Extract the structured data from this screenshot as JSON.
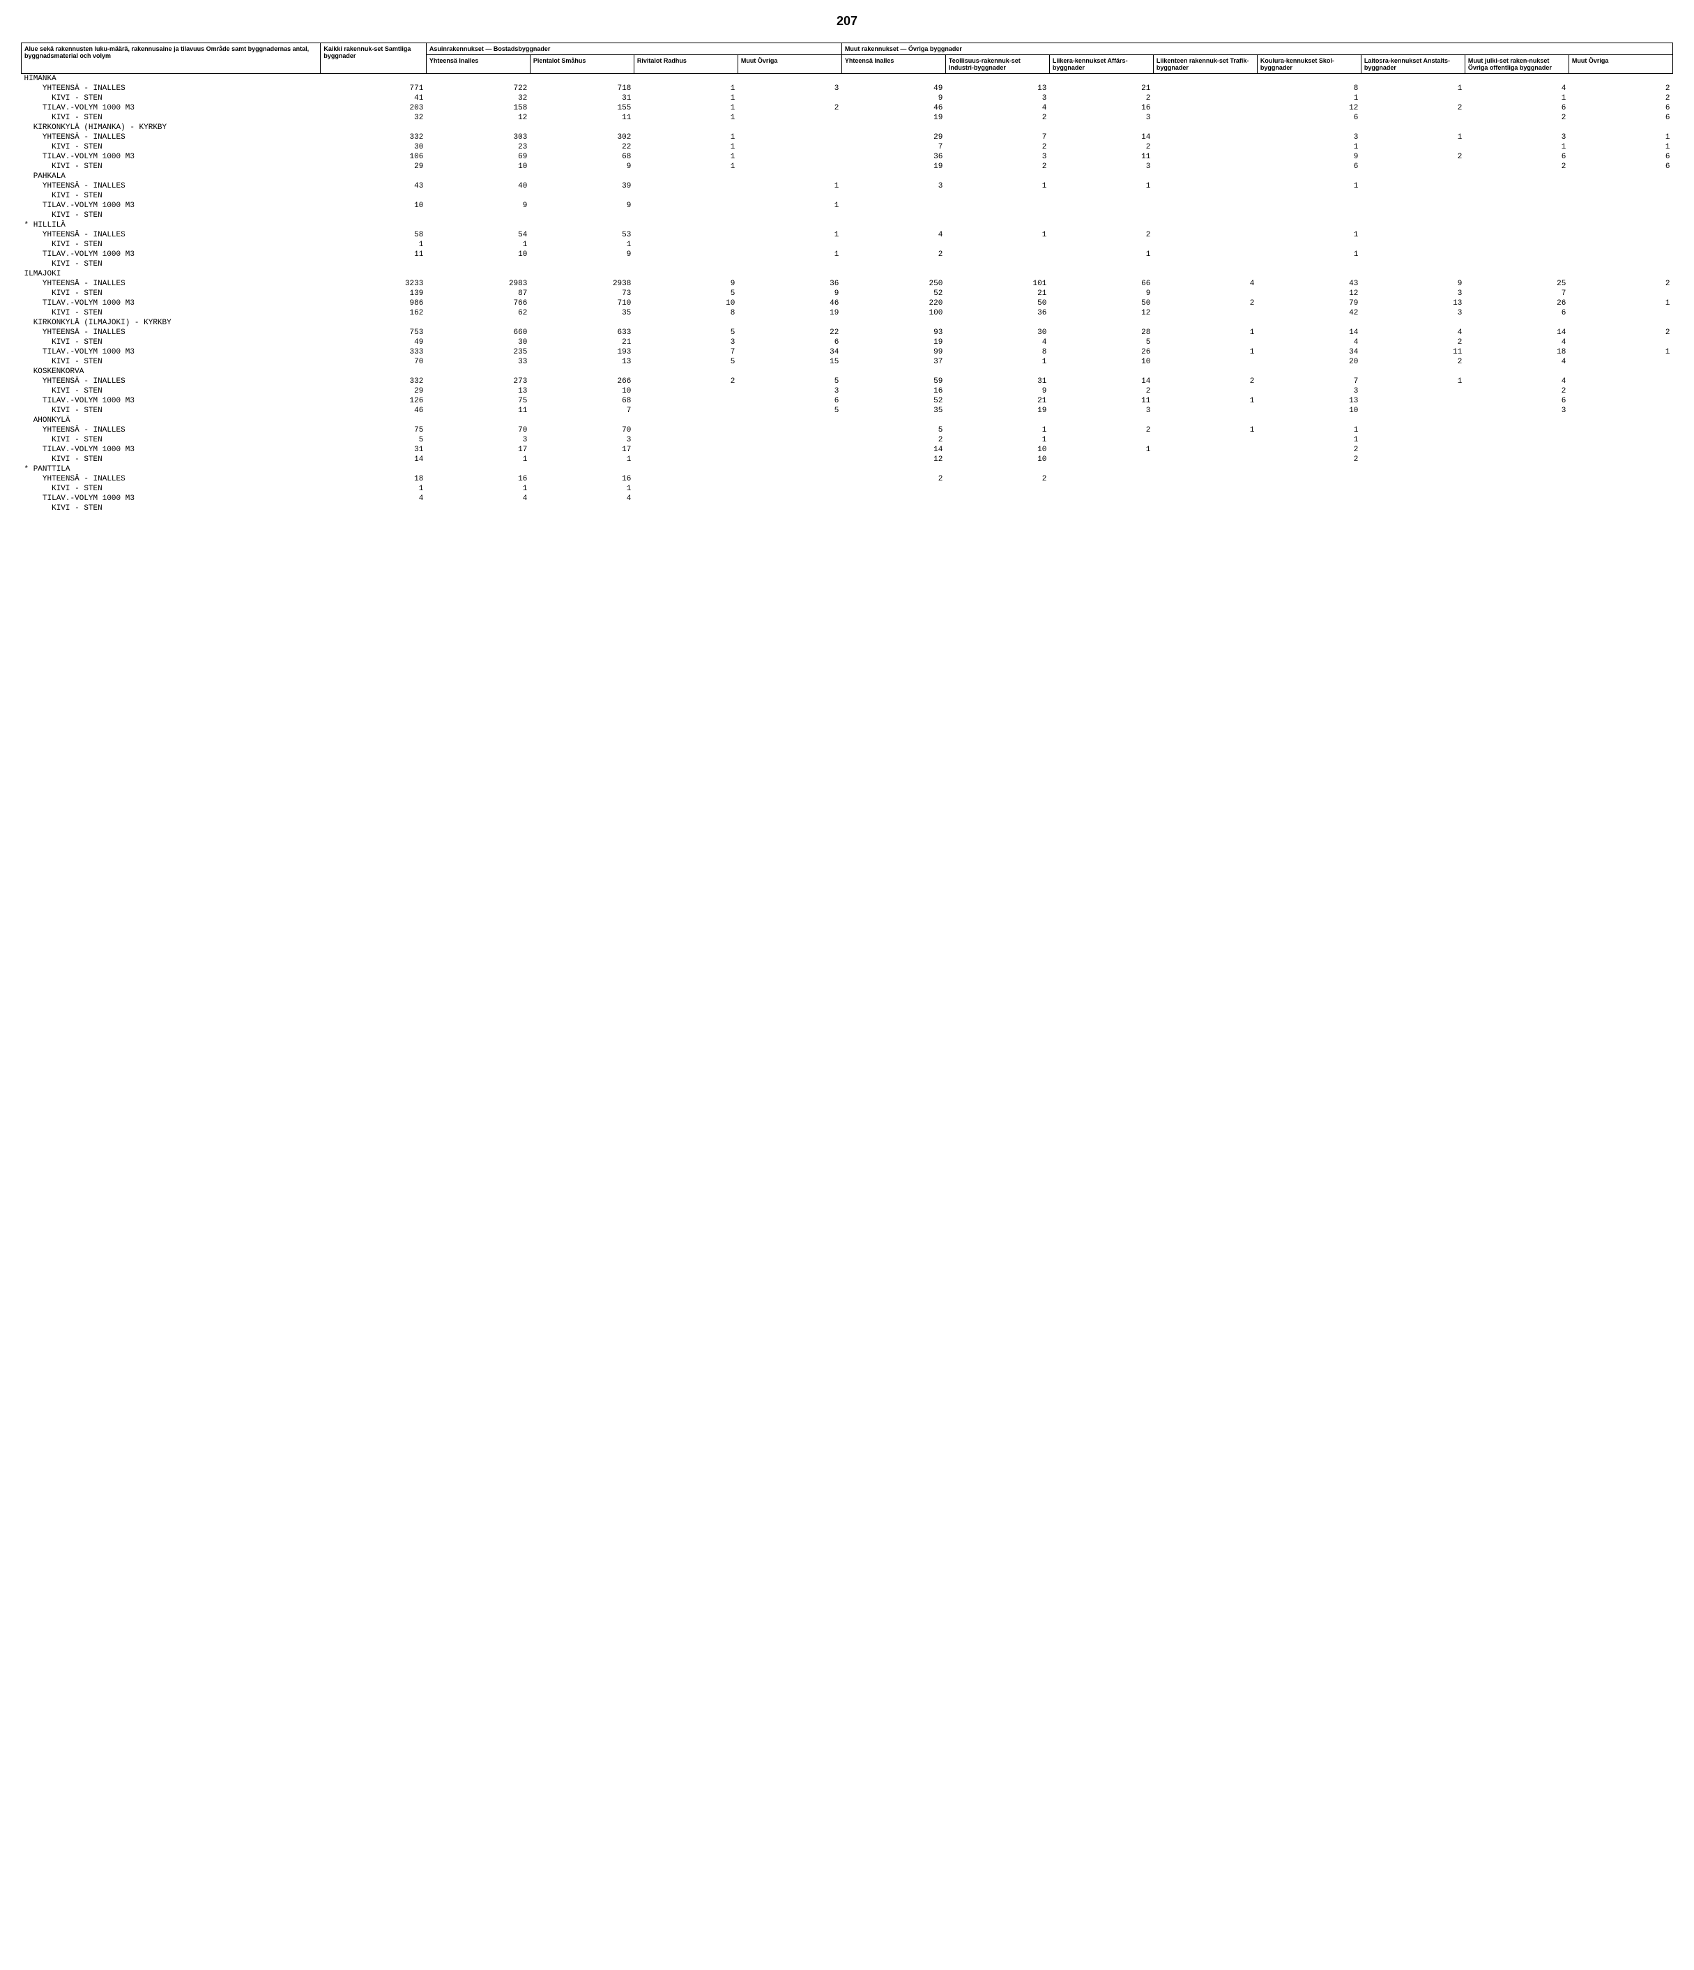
{
  "page_number": "207",
  "header": {
    "col0": "Alue sekä rakennusten luku-määrä, rakennusaine ja tilavuus\nOmråde samt byggnadernas antal, byggnadsmaterial och volym",
    "col1": "Kaikki rakennuk-set\nSamtliga byggnader",
    "grp1": "Asuinrakennukset — Bostadsbyggnader",
    "col2": "Yhteensä Inalles",
    "col3": "Pientalot Småhus",
    "col4": "Rivitalot Radhus",
    "col5": "Muut Övriga",
    "grp2": "Muut rakennukset — Övriga byggnader",
    "col6": "Yhteensä Inalles",
    "col7": "Teollisuus-rakennuk-set\nIndustri-byggnader",
    "col8": "Liikera-kennukset Affärs-byggnader",
    "col9": "Liikenteen rakennuk-set\nTrafik-byggnader",
    "col10": "Koulura-kennukset Skol-byggnader",
    "col11": "Laitosra-kennukset Anstalts-byggnader",
    "col12": "Muut julki-set raken-nukset\nÖvriga offentliga byggnader",
    "col13": "Muut Övriga"
  },
  "labels": {
    "yht": "YHTEENSÄ - INALLES",
    "kivi": "KIVI - STEN",
    "tilav": "TILAV.-VOLYM 1000 M3"
  },
  "sections": [
    {
      "name": "HIMANKA",
      "groups": [
        {
          "rows": [
            {
              "l": "yht",
              "c": [
                "771",
                "722",
                "718",
                "1",
                "3",
                "49",
                "13",
                "21",
                "",
                "8",
                "1",
                "4",
                "2"
              ]
            },
            {
              "l": "kivi",
              "c": [
                "41",
                "32",
                "31",
                "1",
                "",
                "9",
                "3",
                "2",
                "",
                "1",
                "",
                "1",
                "2"
              ]
            }
          ]
        },
        {
          "rows": [
            {
              "l": "tilav",
              "c": [
                "203",
                "158",
                "155",
                "1",
                "2",
                "46",
                "4",
                "16",
                "",
                "12",
                "2",
                "6",
                "6"
              ]
            },
            {
              "l": "kivi",
              "c": [
                "32",
                "12",
                "11",
                "1",
                "",
                "19",
                "2",
                "3",
                "",
                "6",
                "",
                "2",
                "6"
              ]
            }
          ]
        }
      ]
    },
    {
      "name": "KIRKONKYLÄ (HIMANKA) - KYRKBY",
      "indent": true,
      "groups": [
        {
          "rows": [
            {
              "l": "yht",
              "c": [
                "332",
                "303",
                "302",
                "1",
                "",
                "29",
                "7",
                "14",
                "",
                "3",
                "1",
                "3",
                "1"
              ]
            },
            {
              "l": "kivi",
              "c": [
                "30",
                "23",
                "22",
                "1",
                "",
                "7",
                "2",
                "2",
                "",
                "1",
                "",
                "1",
                "1"
              ]
            }
          ]
        },
        {
          "rows": [
            {
              "l": "tilav",
              "c": [
                "106",
                "69",
                "68",
                "1",
                "",
                "36",
                "3",
                "11",
                "",
                "9",
                "2",
                "6",
                "6"
              ]
            },
            {
              "l": "kivi",
              "c": [
                "29",
                "10",
                "9",
                "1",
                "",
                "19",
                "2",
                "3",
                "",
                "6",
                "",
                "2",
                "6"
              ]
            }
          ]
        }
      ]
    },
    {
      "name": "PAHKALA",
      "indent": true,
      "groups": [
        {
          "rows": [
            {
              "l": "yht",
              "c": [
                "43",
                "40",
                "39",
                "",
                "1",
                "3",
                "1",
                "1",
                "",
                "1",
                "",
                "",
                ""
              ]
            },
            {
              "l": "kivi",
              "c": [
                "",
                "",
                "",
                "",
                "",
                "",
                "",
                "",
                "",
                "",
                "",
                "",
                ""
              ]
            }
          ]
        },
        {
          "rows": [
            {
              "l": "tilav",
              "c": [
                "10",
                "9",
                "9",
                "",
                "1",
                "",
                "",
                "",
                "",
                "",
                "",
                "",
                ""
              ]
            },
            {
              "l": "kivi",
              "c": [
                "",
                "",
                "",
                "",
                "",
                "",
                "",
                "",
                "",
                "",
                "",
                "",
                ""
              ]
            }
          ]
        }
      ]
    },
    {
      "name": "* HILLILÄ",
      "groups": [
        {
          "rows": [
            {
              "l": "yht",
              "c": [
                "58",
                "54",
                "53",
                "",
                "1",
                "4",
                "1",
                "2",
                "",
                "1",
                "",
                "",
                ""
              ]
            },
            {
              "l": "kivi",
              "c": [
                "1",
                "1",
                "1",
                "",
                "",
                "",
                "",
                "",
                "",
                "",
                "",
                "",
                ""
              ]
            }
          ]
        },
        {
          "rows": [
            {
              "l": "tilav",
              "c": [
                "11",
                "10",
                "9",
                "",
                "1",
                "2",
                "",
                "1",
                "",
                "1",
                "",
                "",
                ""
              ]
            },
            {
              "l": "kivi",
              "c": [
                "",
                "",
                "",
                "",
                "",
                "",
                "",
                "",
                "",
                "",
                "",
                "",
                ""
              ]
            }
          ]
        }
      ]
    },
    {
      "name": "ILMAJOKI",
      "groups": [
        {
          "rows": [
            {
              "l": "yht",
              "c": [
                "3233",
                "2983",
                "2938",
                "9",
                "36",
                "250",
                "101",
                "66",
                "4",
                "43",
                "9",
                "25",
                "2"
              ]
            },
            {
              "l": "kivi",
              "c": [
                "139",
                "87",
                "73",
                "5",
                "9",
                "52",
                "21",
                "9",
                "",
                "12",
                "3",
                "7",
                ""
              ]
            }
          ]
        },
        {
          "rows": [
            {
              "l": "tilav",
              "c": [
                "986",
                "766",
                "710",
                "10",
                "46",
                "220",
                "50",
                "50",
                "2",
                "79",
                "13",
                "26",
                "1"
              ]
            },
            {
              "l": "kivi",
              "c": [
                "162",
                "62",
                "35",
                "8",
                "19",
                "100",
                "36",
                "12",
                "",
                "42",
                "3",
                "6",
                ""
              ]
            }
          ]
        }
      ]
    },
    {
      "name": "KIRKONKYLÄ (ILMAJOKI) - KYRKBY",
      "indent": true,
      "groups": [
        {
          "rows": [
            {
              "l": "yht",
              "c": [
                "753",
                "660",
                "633",
                "5",
                "22",
                "93",
                "30",
                "28",
                "1",
                "14",
                "4",
                "14",
                "2"
              ]
            },
            {
              "l": "kivi",
              "c": [
                "49",
                "30",
                "21",
                "3",
                "6",
                "19",
                "4",
                "5",
                "",
                "4",
                "2",
                "4",
                ""
              ]
            }
          ]
        },
        {
          "rows": [
            {
              "l": "tilav",
              "c": [
                "333",
                "235",
                "193",
                "7",
                "34",
                "99",
                "8",
                "26",
                "1",
                "34",
                "11",
                "18",
                "1"
              ]
            },
            {
              "l": "kivi",
              "c": [
                "70",
                "33",
                "13",
                "5",
                "15",
                "37",
                "1",
                "10",
                "",
                "20",
                "2",
                "4",
                ""
              ]
            }
          ]
        }
      ]
    },
    {
      "name": "KOSKENKORVA",
      "indent": true,
      "groups": [
        {
          "rows": [
            {
              "l": "yht",
              "c": [
                "332",
                "273",
                "266",
                "2",
                "5",
                "59",
                "31",
                "14",
                "2",
                "7",
                "1",
                "4",
                ""
              ]
            },
            {
              "l": "kivi",
              "c": [
                "29",
                "13",
                "10",
                "",
                "3",
                "16",
                "9",
                "2",
                "",
                "3",
                "",
                "2",
                ""
              ]
            }
          ]
        },
        {
          "rows": [
            {
              "l": "tilav",
              "c": [
                "126",
                "75",
                "68",
                "",
                "6",
                "52",
                "21",
                "11",
                "1",
                "13",
                "",
                "6",
                ""
              ]
            },
            {
              "l": "kivi",
              "c": [
                "46",
                "11",
                "7",
                "",
                "5",
                "35",
                "19",
                "3",
                "",
                "10",
                "",
                "3",
                ""
              ]
            }
          ]
        }
      ]
    },
    {
      "name": "AHONKYLÄ",
      "indent": true,
      "groups": [
        {
          "rows": [
            {
              "l": "yht",
              "c": [
                "75",
                "70",
                "70",
                "",
                "",
                "5",
                "1",
                "2",
                "1",
                "1",
                "",
                "",
                ""
              ]
            },
            {
              "l": "kivi",
              "c": [
                "5",
                "3",
                "3",
                "",
                "",
                "2",
                "1",
                "",
                "",
                "1",
                "",
                "",
                ""
              ]
            }
          ]
        },
        {
          "rows": [
            {
              "l": "tilav",
              "c": [
                "31",
                "17",
                "17",
                "",
                "",
                "14",
                "10",
                "1",
                "",
                "2",
                "",
                "",
                ""
              ]
            },
            {
              "l": "kivi",
              "c": [
                "14",
                "1",
                "1",
                "",
                "",
                "12",
                "10",
                "",
                "",
                "2",
                "",
                "",
                ""
              ]
            }
          ]
        }
      ]
    },
    {
      "name": "* PANTTILA",
      "groups": [
        {
          "rows": [
            {
              "l": "yht",
              "c": [
                "18",
                "16",
                "16",
                "",
                "",
                "2",
                "2",
                "",
                "",
                "",
                "",
                "",
                ""
              ]
            },
            {
              "l": "kivi",
              "c": [
                "1",
                "1",
                "1",
                "",
                "",
                "",
                "",
                "",
                "",
                "",
                "",
                "",
                ""
              ]
            }
          ]
        },
        {
          "rows": [
            {
              "l": "tilav",
              "c": [
                "4",
                "4",
                "4",
                "",
                "",
                "",
                "",
                "",
                "",
                "",
                "",
                "",
                ""
              ]
            },
            {
              "l": "kivi",
              "c": [
                "",
                "",
                "",
                "",
                "",
                "",
                "",
                "",
                "",
                "",
                "",
                "",
                ""
              ]
            }
          ]
        }
      ]
    }
  ]
}
